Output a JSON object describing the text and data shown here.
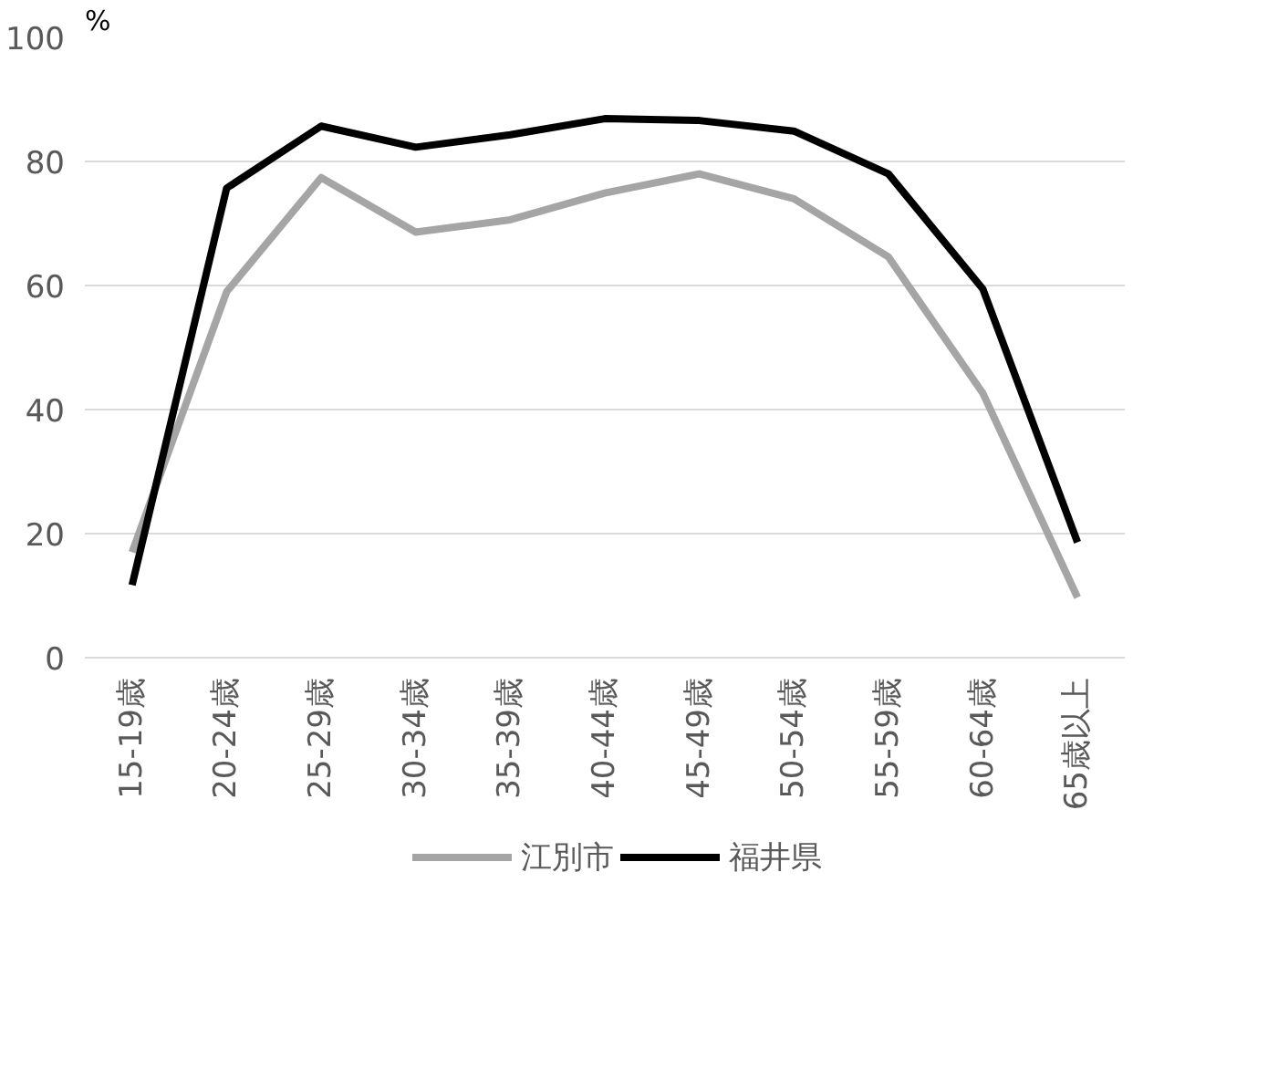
{
  "chart_data": {
    "type": "line",
    "ylabel": "%",
    "categories": [
      "15-19歳",
      "20-24歳",
      "25-29歳",
      "30-34歳",
      "35-39歳",
      "40-44歳",
      "45-49歳",
      "50-54歳",
      "55-59歳",
      "60-64歳",
      "65歳以上"
    ],
    "series": [
      {
        "name": "江別市",
        "color": "#a5a5a5",
        "values": [
          17,
          59,
          77.4,
          68.6,
          70.6,
          74.9,
          78,
          74,
          64.6,
          42.6,
          9.7
        ]
      },
      {
        "name": "福井県",
        "color": "#000000",
        "values": [
          11.7,
          75.7,
          85.7,
          82.3,
          84.3,
          86.9,
          86.6,
          84.9,
          78,
          59.4,
          18.6
        ]
      }
    ],
    "ylim": [
      0,
      100
    ],
    "yticks": [
      0,
      20,
      40,
      60,
      80,
      100
    ],
    "grid": "y",
    "legend": "bottom",
    "marker": "none",
    "line_style": "solid"
  }
}
